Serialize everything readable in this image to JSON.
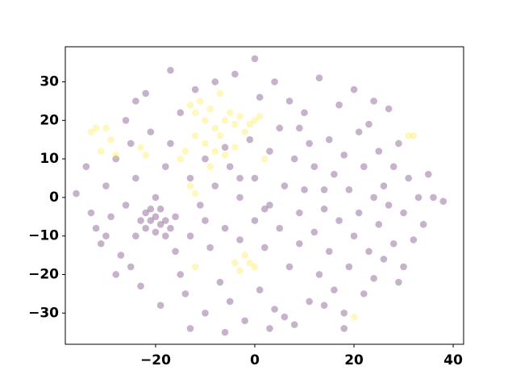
{
  "chart_data": {
    "type": "scatter",
    "xlim": [
      -38.2,
      42.1
    ],
    "ylim": [
      -38.1,
      39.1
    ],
    "xticks": [
      {
        "value": -20,
        "label": "−20"
      },
      0,
      20,
      40
    ],
    "yticks": [
      {
        "value": -30,
        "label": "−30"
      },
      {
        "value": -20,
        "label": "−20"
      },
      {
        "value": -10,
        "label": "−10"
      },
      0,
      10,
      20,
      30
    ],
    "opacity": 0.3,
    "series": [
      {
        "color": "#440154",
        "x": [
          -36,
          -34,
          -33,
          -32,
          -31,
          -30,
          -29,
          -28,
          -27,
          -26,
          -26,
          -25,
          -24,
          -24,
          -23,
          -22,
          -22,
          -21,
          -20,
          -20,
          -19,
          -19,
          -18,
          -18,
          -17,
          -21,
          -16,
          -23,
          -22,
          -21,
          -20,
          -19,
          -18,
          -17,
          -16,
          -15,
          -15,
          -14,
          -13,
          -13,
          -12,
          -11,
          -10,
          -10,
          -9,
          -8,
          -8,
          -7,
          -6,
          -5,
          -5,
          -4,
          -3,
          -3,
          -2,
          -1,
          0,
          0,
          0,
          1,
          1,
          2,
          3,
          3,
          4,
          4,
          5,
          5,
          6,
          7,
          7,
          8,
          8,
          9,
          9,
          10,
          10,
          11,
          11,
          12,
          12,
          13,
          13,
          14,
          14,
          15,
          15,
          16,
          16,
          17,
          17,
          18,
          18,
          19,
          19,
          20,
          20,
          21,
          21,
          22,
          22,
          23,
          23,
          24,
          24,
          25,
          25,
          26,
          26,
          27,
          27,
          28,
          28,
          29,
          29,
          30,
          30,
          31,
          32,
          33,
          34,
          35,
          36,
          38,
          -25,
          -28,
          -13,
          6,
          14,
          -6,
          3,
          -30,
          -24,
          -6,
          -3,
          2,
          -10,
          9,
          18,
          -17,
          24
        ],
        "values": [
          1,
          8,
          -4,
          -8,
          -12,
          3,
          -5,
          10,
          -15,
          20,
          -2,
          14,
          -10,
          5,
          -23,
          -4,
          -8,
          -6,
          -5,
          -9,
          -7,
          -3,
          -6,
          -10,
          -8,
          -3,
          -5,
          -6,
          27,
          17,
          0,
          -28,
          8,
          33,
          -14,
          22,
          -20,
          -25,
          5,
          -10,
          28,
          -2,
          -30,
          10,
          -13,
          3,
          30,
          -22,
          -8,
          8,
          -27,
          32,
          0,
          -11,
          -32,
          15,
          36,
          -6,
          5,
          -24,
          26,
          -13,
          12,
          -2,
          -29,
          30,
          -8,
          18,
          3,
          -18,
          25,
          -33,
          10,
          -4,
          -12,
          22,
          2,
          -27,
          14,
          -9,
          8,
          31,
          -20,
          2,
          -3,
          15,
          -14,
          -24,
          6,
          24,
          -6,
          -34,
          11,
          -18,
          2,
          28,
          -10,
          17,
          -4,
          -25,
          8,
          -14,
          19,
          0,
          -21,
          12,
          -7,
          -16,
          3,
          23,
          -2,
          8,
          -12,
          -22,
          14,
          -4,
          -18,
          5,
          -11,
          0,
          -7,
          6,
          0,
          -1,
          -18,
          -20,
          -34,
          -31,
          -28,
          -35,
          -34,
          -10,
          25,
          13,
          5,
          -3,
          -6,
          18,
          -30,
          14,
          25
        ]
      },
      {
        "color": "#fde725",
        "x": [
          -32,
          -31,
          -30,
          -29,
          -28,
          -33,
          -23,
          -22,
          -13,
          -12,
          -11,
          -10,
          -9,
          -8,
          -7,
          -6,
          -5,
          -4,
          -3,
          -2,
          -1,
          0,
          1,
          -12,
          -10,
          -8,
          -6,
          -4,
          -14,
          -15,
          -13,
          -12,
          -9,
          2,
          -4,
          -3,
          -2,
          -1,
          0,
          -12,
          20,
          31,
          32,
          -7
        ],
        "values": [
          18,
          12,
          18,
          15,
          11,
          17,
          13,
          11,
          24,
          22,
          25,
          20,
          23,
          18,
          16,
          20,
          22,
          19,
          21,
          17,
          19,
          20,
          21,
          16,
          14,
          12,
          11,
          13,
          12,
          10,
          3,
          1,
          8,
          10,
          -17,
          -19,
          -15,
          -17,
          -18,
          -18,
          -31,
          16,
          16,
          27
        ]
      }
    ]
  }
}
